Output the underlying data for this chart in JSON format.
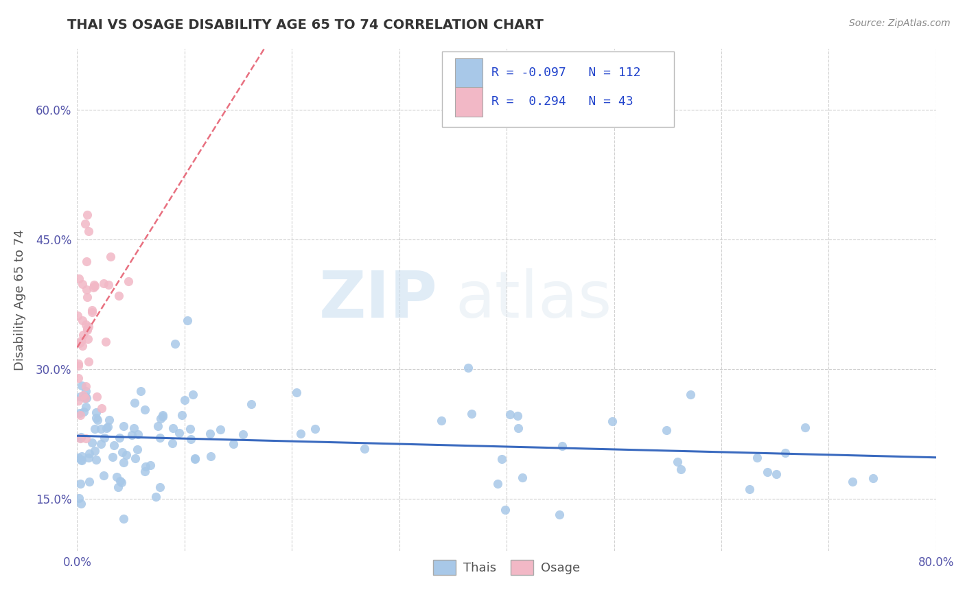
{
  "title": "THAI VS OSAGE DISABILITY AGE 65 TO 74 CORRELATION CHART",
  "source": "Source: ZipAtlas.com",
  "ylabel": "Disability Age 65 to 74",
  "xlim": [
    0.0,
    0.8
  ],
  "ylim": [
    0.09,
    0.67
  ],
  "xticks": [
    0.0,
    0.1,
    0.2,
    0.3,
    0.4,
    0.5,
    0.6,
    0.7,
    0.8
  ],
  "yticks": [
    0.15,
    0.3,
    0.45,
    0.6
  ],
  "yticklabels": [
    "15.0%",
    "30.0%",
    "45.0%",
    "60.0%"
  ],
  "thai_color": "#a8c8e8",
  "osage_color": "#f2b8c6",
  "thai_line_color": "#3a6abf",
  "osage_line_color": "#e87080",
  "thai_R": -0.097,
  "thai_N": 112,
  "osage_R": 0.294,
  "osage_N": 43,
  "legend_thai_label": "Thais",
  "legend_osage_label": "Osage",
  "watermark_zip": "ZIP",
  "watermark_atlas": "atlas",
  "background_color": "#ffffff",
  "grid_color": "#d0d0d0",
  "title_color": "#333333",
  "axis_color": "#5555aa",
  "legend_text_color": "#2244cc"
}
